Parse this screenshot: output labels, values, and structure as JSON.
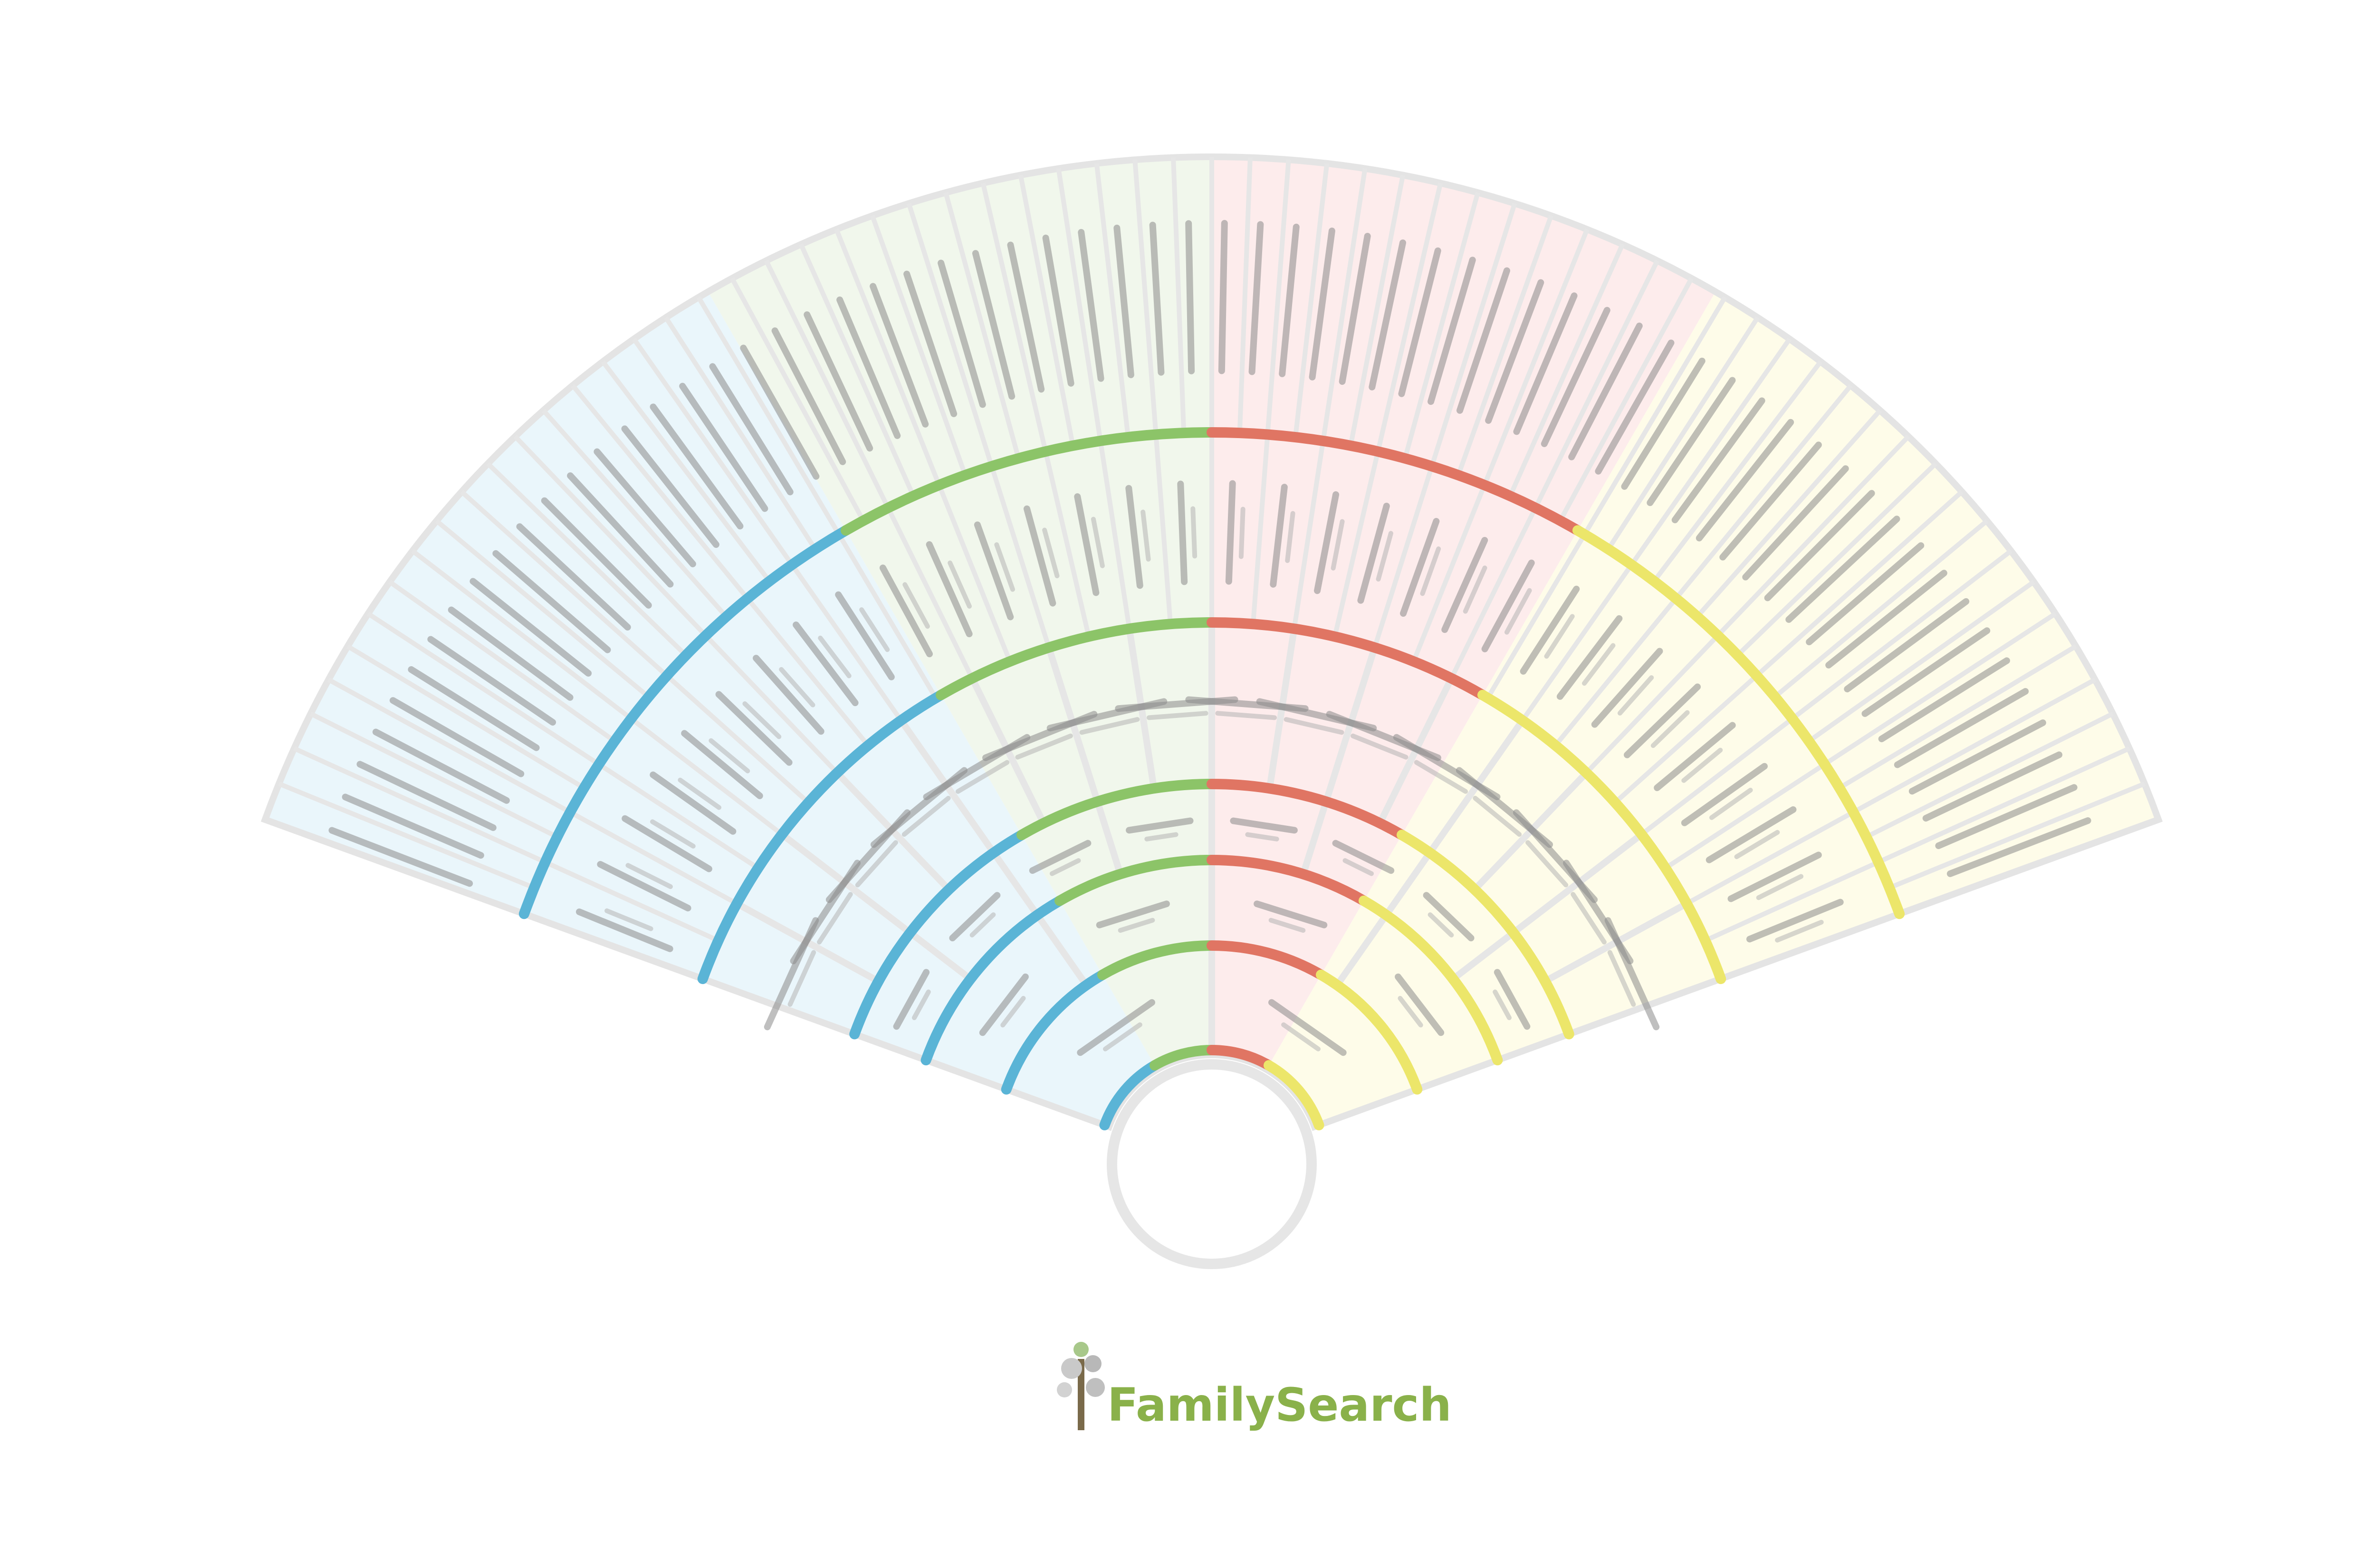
{
  "root": {
    "name": "",
    "dates": ""
  },
  "branches": [
    {
      "key": "blue",
      "start": 200,
      "end": 240,
      "fill": "#eaf6fb",
      "stroke": "#5ab4d6"
    },
    {
      "key": "green",
      "start": 240,
      "end": 270,
      "fill": "#f1f7ec",
      "stroke": "#8cc468"
    },
    {
      "key": "red",
      "start": 270,
      "end": 300,
      "fill": "#fdecec",
      "stroke": "#e07563"
    },
    {
      "key": "yellow",
      "start": 300,
      "end": 340,
      "fill": "#fefce9",
      "stroke": "#ece66a"
    }
  ],
  "generations": 6,
  "logo": {
    "text": "FamilySearch",
    "icon": "tree-icon"
  }
}
